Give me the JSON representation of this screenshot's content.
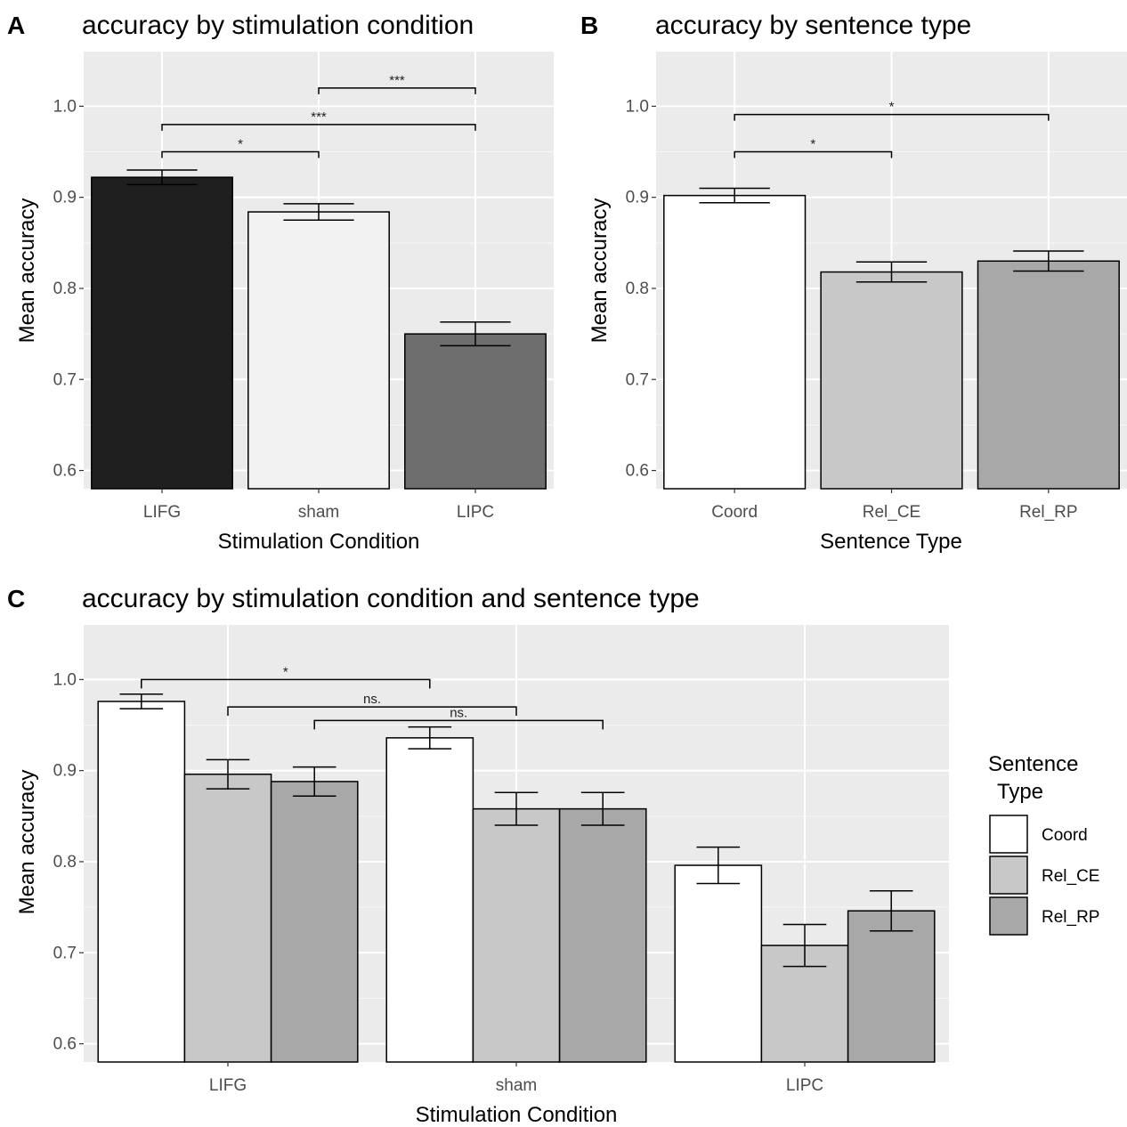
{
  "chart_data": [
    {
      "letter": "A",
      "type": "bar",
      "title": "accuracy by stimulation condition",
      "xlabel": "Stimulation Condition",
      "ylabel": "Mean accuracy",
      "categories": [
        "LIFG",
        "sham",
        "LIPC"
      ],
      "values": [
        0.922,
        0.884,
        0.75
      ],
      "errors": [
        0.008,
        0.009,
        0.013
      ],
      "colors": [
        "#1f1f1f",
        "#f2f2f2",
        "#6e6e6e"
      ],
      "ylim": [
        0.58,
        1.06
      ],
      "yticks": [
        0.6,
        0.7,
        0.8,
        0.9,
        1.0
      ],
      "ytick_labels": [
        "0.6",
        "0.7",
        "0.8",
        "0.9",
        "1.0"
      ],
      "grid": true,
      "significance": [
        {
          "from": 0,
          "to": 1,
          "y": 0.95,
          "label": "*"
        },
        {
          "from": 0,
          "to": 2,
          "y": 0.98,
          "label": "***"
        },
        {
          "from": 1,
          "to": 2,
          "y": 1.02,
          "label": "***"
        }
      ]
    },
    {
      "letter": "B",
      "type": "bar",
      "title": "accuracy by sentence type",
      "xlabel": "Sentence Type",
      "ylabel": "Mean accuracy",
      "categories": [
        "Coord",
        "Rel_CE",
        "Rel_RP"
      ],
      "values": [
        0.902,
        0.818,
        0.83
      ],
      "errors": [
        0.008,
        0.011,
        0.011
      ],
      "colors": [
        "#ffffff",
        "#c8c8c8",
        "#a8a8a8"
      ],
      "ylim": [
        0.58,
        1.06
      ],
      "yticks": [
        0.6,
        0.7,
        0.8,
        0.9,
        1.0
      ],
      "ytick_labels": [
        "0.6",
        "0.7",
        "0.8",
        "0.9",
        "1.0"
      ],
      "grid": true,
      "significance": [
        {
          "from": 0,
          "to": 1,
          "y": 0.95,
          "label": "*"
        },
        {
          "from": 0,
          "to": 2,
          "y": 0.991,
          "label": "*"
        }
      ]
    },
    {
      "letter": "C",
      "type": "bar",
      "title": "accuracy by stimulation condition and sentence type",
      "xlabel": "Stimulation Condition",
      "ylabel": "Mean accuracy",
      "categories": [
        "LIFG",
        "sham",
        "LIPC"
      ],
      "series": [
        {
          "name": "Coord",
          "values": [
            0.976,
            0.936,
            0.796
          ],
          "errors": [
            0.008,
            0.012,
            0.02
          ],
          "color": "#ffffff"
        },
        {
          "name": "Rel_CE",
          "values": [
            0.896,
            0.858,
            0.708
          ],
          "errors": [
            0.016,
            0.018,
            0.023
          ],
          "color": "#c8c8c8"
        },
        {
          "name": "Rel_RP",
          "values": [
            0.888,
            0.858,
            0.746
          ],
          "errors": [
            0.016,
            0.018,
            0.022
          ],
          "color": "#a8a8a8"
        }
      ],
      "ylim": [
        0.58,
        1.06
      ],
      "yticks": [
        0.6,
        0.7,
        0.8,
        0.9,
        1.0
      ],
      "ytick_labels": [
        "0.6",
        "0.7",
        "0.8",
        "0.9",
        "1.0"
      ],
      "grid": true,
      "legend": {
        "title_line1": "Sentence",
        "title_line2": "Type",
        "placement": "right"
      },
      "significance": [
        {
          "from": [
            0,
            0
          ],
          "to": [
            1,
            0
          ],
          "y": 1.0,
          "label": "*"
        },
        {
          "from": [
            0,
            1
          ],
          "to": [
            1,
            1
          ],
          "y": 0.97,
          "label": "ns."
        },
        {
          "from": [
            0,
            2
          ],
          "to": [
            1,
            2
          ],
          "y": 0.955,
          "label": "ns."
        }
      ]
    }
  ]
}
